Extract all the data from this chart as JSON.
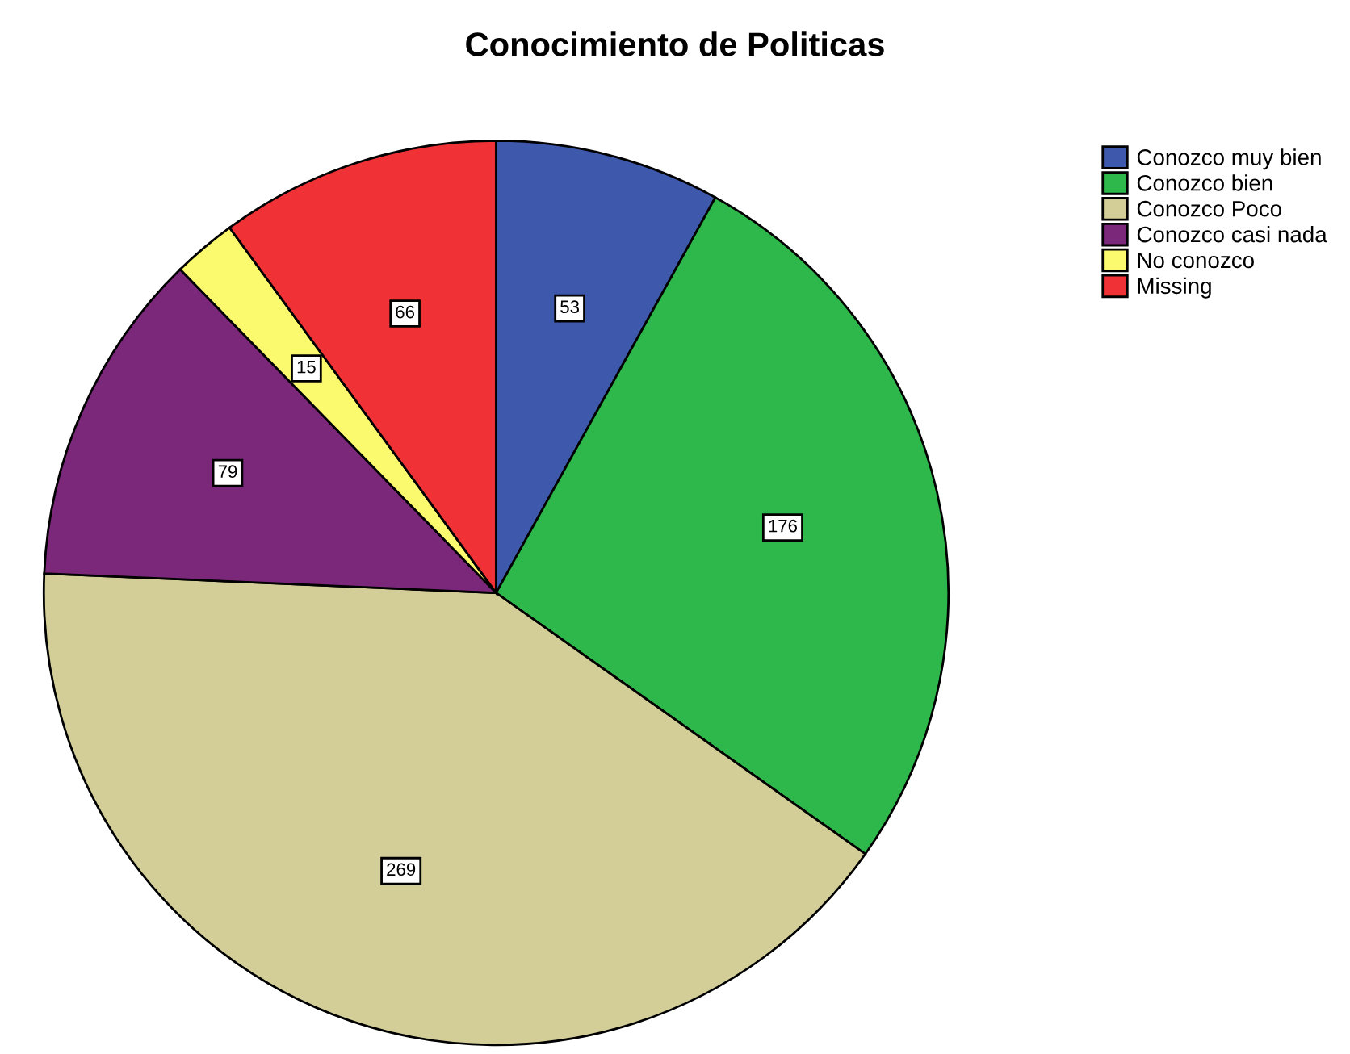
{
  "chart_data": {
    "type": "pie",
    "title": "Conocimiento de Politicas",
    "categories": [
      "Conozco muy bien",
      "Conozco bien",
      "Conozco Poco",
      "Conozco casi nada",
      "No conozco",
      "Missing"
    ],
    "values": [
      53,
      176,
      269,
      79,
      15,
      66
    ],
    "colors": [
      "#3e58ac",
      "#2eb84b",
      "#d3ce97",
      "#7b287b",
      "#fbf96e",
      "#f03237"
    ],
    "data_labels": true,
    "legend": "top right"
  }
}
